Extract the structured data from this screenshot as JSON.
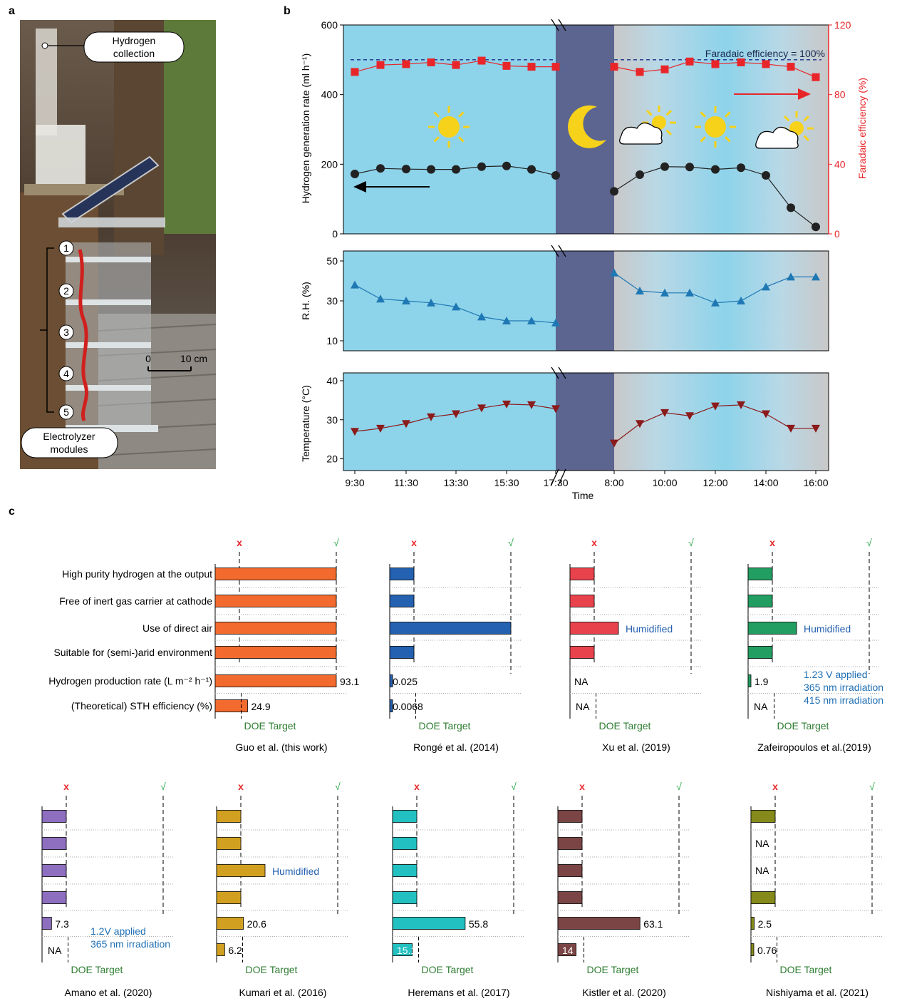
{
  "panels": {
    "a": "a",
    "b": "b",
    "c": "c"
  },
  "photo": {
    "collection_label": [
      "Hydrogen",
      "collection"
    ],
    "module_label": [
      "Electrolyzer",
      "modules"
    ],
    "module_numbers": [
      "1",
      "2",
      "3",
      "4",
      "5"
    ],
    "scale_zero": "0",
    "scale_len": "10 cm"
  },
  "colors": {
    "day_bg": "#8dd3ea",
    "night_bg": "#5b6590",
    "grey_bg": "#c8c8c8",
    "h2_marker": "#222222",
    "fe_marker": "#e8262a",
    "rh_marker": "#1f78b4",
    "temp_marker": "#8b1a1a"
  },
  "chart_data": [
    {
      "type": "line",
      "panel": "b-top",
      "x_ticks": [
        "9:30",
        "11:30",
        "13:30",
        "15:30",
        "17:30",
        "8:00",
        "10:00",
        "12:00",
        "14:00",
        "16:00"
      ],
      "x": [
        "9:30",
        "10:30",
        "11:30",
        "12:30",
        "13:30",
        "14:30",
        "15:30",
        "16:30",
        "17:30",
        "8:00",
        "9:00",
        "10:00",
        "11:00",
        "12:00",
        "13:00",
        "14:00",
        "15:00",
        "16:00"
      ],
      "ylabel_left": "Hydrogen generation rate (ml h⁻¹)",
      "ylabel_right": "Faradaic efficiency (%)",
      "ylim_left": [
        0,
        600
      ],
      "yticks_left": [
        "0",
        "200",
        "400",
        "600"
      ],
      "ylim_right": [
        0,
        120
      ],
      "yticks_right": [
        "0",
        "40",
        "80",
        "120"
      ],
      "annotation": "Faradaic efficiency = 100%",
      "fe_reference": 100,
      "series": [
        {
          "values": [
            172,
            188,
            186,
            185,
            185,
            193,
            195,
            185,
            168,
            122,
            170,
            193,
            192,
            185,
            190,
            168,
            75,
            20
          ]
        },
        {
          "values": [
            93,
            97,
            97.5,
            98.5,
            97,
            99.5,
            96.5,
            96,
            96,
            96,
            93,
            94.5,
            99,
            97.5,
            98.5,
            97.5,
            96,
            90
          ]
        }
      ]
    },
    {
      "type": "line",
      "panel": "b-middle",
      "ylabel": "R.H. (%)",
      "ylim": [
        5,
        55
      ],
      "yticks": [
        "10",
        "30",
        "50"
      ],
      "series": [
        {
          "values": [
            38,
            31,
            30,
            29,
            27,
            22,
            20,
            20,
            19,
            44,
            35,
            34,
            34,
            29,
            30,
            37,
            42,
            42
          ]
        }
      ]
    },
    {
      "type": "line",
      "panel": "b-bottom",
      "ylabel": "Temperature (°C)",
      "xlabel": "Time",
      "ylim": [
        17,
        42
      ],
      "yticks": [
        "20",
        "30",
        "40"
      ],
      "series": [
        {
          "values": [
            27,
            27.8,
            29,
            30.7,
            31.5,
            33,
            34,
            33.8,
            32.8,
            24,
            29,
            31.8,
            31,
            33.5,
            33.8,
            31.5,
            27.8,
            27.8
          ]
        }
      ]
    },
    {
      "type": "bar",
      "panel": "c",
      "categories": [
        "High purity hydrogen at the output",
        "Free of inert gas carrier at cathode",
        "Use of direct air",
        "Suitable for (semi-)arid environment",
        "Hydrogen production rate (L m⁻² h⁻¹)",
        "(Theoretical) STH efficiency (%)"
      ],
      "marks": {
        "cross": "x",
        "check": "√",
        "doe": "DOE Target"
      },
      "scale_notes": {
        "cross_position": 0,
        "check_position": 1,
        "rate_at_check": 93.1,
        "sth_doe_target": 20
      },
      "studies": [
        {
          "name": "Guo et al. (this work)",
          "color": "#f26a2e",
          "criteria": [
            1,
            1,
            1,
            1
          ],
          "rate": 93.1,
          "rate_label": "93.1",
          "sth": 24.9,
          "sth_label": "24.9",
          "note": ""
        },
        {
          "name": "Rongé et al. (2014)",
          "color": "#2461b0",
          "criteria": [
            0,
            0,
            1,
            0
          ],
          "rate": 0.025,
          "rate_label": "0.025",
          "sth": 0.0068,
          "sth_label": "0.0068",
          "note": ""
        },
        {
          "name": "Xu et al. (2019)",
          "color": "#e8434c",
          "criteria": [
            0,
            0,
            0.25,
            0
          ],
          "rate": null,
          "rate_label": "NA",
          "sth": null,
          "sth_label": "NA",
          "note": "Humidified"
        },
        {
          "name": "Zafeiropoulos et al.(2019)",
          "color": "#229e62",
          "criteria": [
            0,
            0,
            0.25,
            0
          ],
          "rate": 1.9,
          "rate_label": "1.9",
          "sth": null,
          "sth_label": "NA",
          "note": "Humidified",
          "conditions": [
            "1.23 V applied",
            "365 nm irradiation",
            "415 nm irradiation"
          ]
        },
        {
          "name": "Amano et al. (2020)",
          "color": "#8d6ebf",
          "criteria": [
            0,
            0,
            0,
            0
          ],
          "rate": 7.3,
          "rate_label": "7.3",
          "sth": null,
          "sth_label": "NA",
          "note": "",
          "conditions": [
            "1.2V applied",
            "365 nm irradiation"
          ]
        },
        {
          "name": "Kumari et al. (2016)",
          "color": "#d1a020",
          "criteria": [
            0,
            0,
            0.25,
            0
          ],
          "rate": 20.6,
          "rate_label": "20.6",
          "sth": 6.2,
          "sth_label": "6.2",
          "note": "Humidified"
        },
        {
          "name": "Heremans et al. (2017)",
          "color": "#22c0c0",
          "criteria": [
            0,
            0,
            0,
            0
          ],
          "rate": 55.8,
          "rate_label": "55.8",
          "sth": 15.1,
          "sth_label": "15.1",
          "note": ""
        },
        {
          "name": "Kistler et al. (2020)",
          "color": "#7b4545",
          "criteria": [
            0,
            0,
            0,
            0
          ],
          "rate": 63.1,
          "rate_label": "63.1",
          "sth": 14,
          "sth_label": "14",
          "note": ""
        },
        {
          "name": "Nishiyama et al. (2021)",
          "color": "#858a1a",
          "criteria": [
            0,
            null,
            null,
            0
          ],
          "criteria_labels": [
            "",
            "NA",
            "NA",
            ""
          ],
          "rate": 2.5,
          "rate_label": "2.5",
          "sth": 0.76,
          "sth_label": "0.76",
          "note": ""
        }
      ]
    }
  ]
}
